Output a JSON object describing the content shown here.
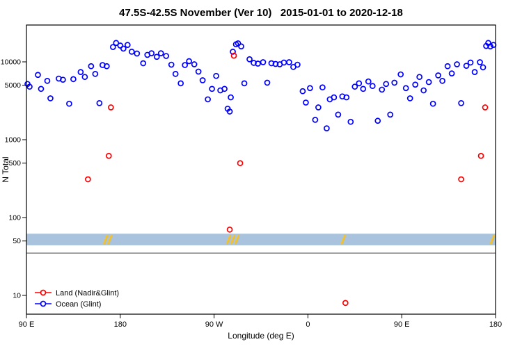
{
  "chart_data": {
    "type": "scatter",
    "title": "47.5S-42.5S November (Ver 10)   2015-01-01 to 2020-12-18",
    "xlabel": "Longitude (deg E)",
    "ylabel": "N Total",
    "x_axis": {
      "range": [
        90,
        540
      ],
      "ticks": [
        90,
        180,
        270,
        360,
        450,
        540
      ],
      "tick_labels": [
        "90 E",
        "180",
        "90 W",
        "0",
        "90 E",
        "180"
      ]
    },
    "y_axis": {
      "scale": "log",
      "range": [
        6,
        28000
      ],
      "ticks": [
        10,
        50,
        100,
        500,
        1000,
        5000,
        10000
      ],
      "tick_labels": [
        "10",
        "50",
        "100",
        "500",
        "1000",
        "5000",
        "10000"
      ]
    },
    "grid": "off",
    "legend_position": "bottom-left",
    "band": {
      "color": "#a9c3de",
      "y_from": 44,
      "y_to": 62,
      "mark_color": "#f2c12e",
      "mark_lons": [
        166,
        170,
        284,
        288,
        292,
        394,
        537
      ]
    },
    "reference_line_y": 35,
    "series": [
      {
        "name": "Land (Nadir&Glint)",
        "color": "#ff0000",
        "marker": "open-circle",
        "points": [
          [
            149,
            310
          ],
          [
            169,
            620
          ],
          [
            171,
            2600
          ],
          [
            285,
            70
          ],
          [
            289,
            12000
          ],
          [
            295,
            500
          ],
          [
            396,
            8
          ],
          [
            507,
            310
          ],
          [
            526,
            620
          ],
          [
            530,
            2600
          ]
        ]
      },
      {
        "name": "Ocean (Glint)",
        "color": "#0000ff",
        "marker": "open-circle",
        "points": [
          [
            91,
            5200
          ],
          [
            93,
            4800
          ],
          [
            101,
            6800
          ],
          [
            104,
            4500
          ],
          [
            110,
            5700
          ],
          [
            113,
            3400
          ],
          [
            121,
            6100
          ],
          [
            125,
            5900
          ],
          [
            131,
            2900
          ],
          [
            135,
            6000
          ],
          [
            142,
            7400
          ],
          [
            146,
            6400
          ],
          [
            152,
            8800
          ],
          [
            156,
            7000
          ],
          [
            160,
            2950
          ],
          [
            163,
            9100
          ],
          [
            167,
            8800
          ],
          [
            173,
            15500
          ],
          [
            176,
            17500
          ],
          [
            180,
            16200
          ],
          [
            183,
            14800
          ],
          [
            187,
            16500
          ],
          [
            191,
            13500
          ],
          [
            196,
            12800
          ],
          [
            202,
            9600
          ],
          [
            206,
            12300
          ],
          [
            210,
            12900
          ],
          [
            215,
            11600
          ],
          [
            219,
            12900
          ],
          [
            224,
            11900
          ],
          [
            229,
            9200
          ],
          [
            233,
            7000
          ],
          [
            238,
            5300
          ],
          [
            242,
            9100
          ],
          [
            246,
            10200
          ],
          [
            251,
            9300
          ],
          [
            255,
            7500
          ],
          [
            259,
            5800
          ],
          [
            264,
            3300
          ],
          [
            268,
            4500
          ],
          [
            272,
            6600
          ],
          [
            276,
            4300
          ],
          [
            280,
            4500
          ],
          [
            283,
            2500
          ],
          [
            285,
            2300
          ],
          [
            286,
            3500
          ],
          [
            288,
            13500
          ],
          [
            291,
            16800
          ],
          [
            293,
            17300
          ],
          [
            296,
            15800
          ],
          [
            299,
            5300
          ],
          [
            304,
            10800
          ],
          [
            308,
            9700
          ],
          [
            312,
            9500
          ],
          [
            317,
            9900
          ],
          [
            321,
            5400
          ],
          [
            325,
            9600
          ],
          [
            329,
            9400
          ],
          [
            333,
            9300
          ],
          [
            337,
            9800
          ],
          [
            342,
            9900
          ],
          [
            346,
            8600
          ],
          [
            350,
            9200
          ],
          [
            355,
            4200
          ],
          [
            358,
            3000
          ],
          [
            362,
            4600
          ],
          [
            367,
            1800
          ],
          [
            370,
            2600
          ],
          [
            374,
            4700
          ],
          [
            378,
            1400
          ],
          [
            381,
            3300
          ],
          [
            385,
            3500
          ],
          [
            389,
            2100
          ],
          [
            393,
            3600
          ],
          [
            397,
            3500
          ],
          [
            401,
            1700
          ],
          [
            405,
            4800
          ],
          [
            409,
            5300
          ],
          [
            413,
            4500
          ],
          [
            418,
            5600
          ],
          [
            422,
            4900
          ],
          [
            427,
            1750
          ],
          [
            431,
            4400
          ],
          [
            435,
            5200
          ],
          [
            439,
            2100
          ],
          [
            443,
            5400
          ],
          [
            449,
            6900
          ],
          [
            454,
            4600
          ],
          [
            458,
            3400
          ],
          [
            463,
            5100
          ],
          [
            467,
            6400
          ],
          [
            471,
            4300
          ],
          [
            476,
            5500
          ],
          [
            480,
            2900
          ],
          [
            485,
            6700
          ],
          [
            489,
            5700
          ],
          [
            494,
            8800
          ],
          [
            498,
            7100
          ],
          [
            503,
            9300
          ],
          [
            507,
            2950
          ],
          [
            512,
            8900
          ],
          [
            516,
            9800
          ],
          [
            520,
            7400
          ],
          [
            525,
            9900
          ],
          [
            528,
            8500
          ],
          [
            531,
            16000
          ],
          [
            533,
            17500
          ],
          [
            535,
            15800
          ],
          [
            538,
            16500
          ]
        ]
      }
    ]
  }
}
